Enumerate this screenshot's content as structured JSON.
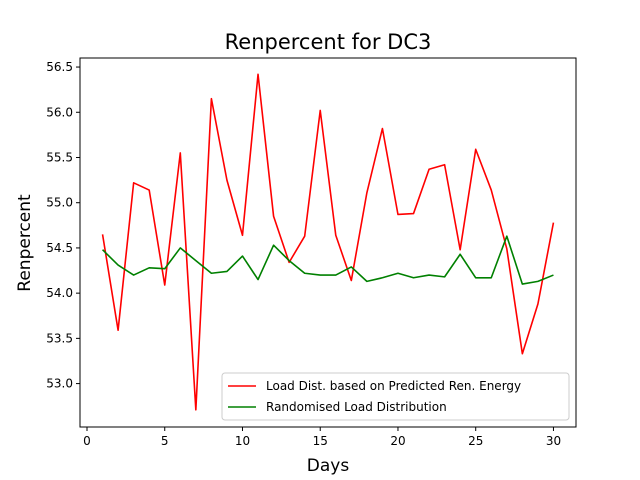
{
  "chart_data": {
    "type": "line",
    "title": "Renpercent for DC3",
    "xlabel": "Days",
    "ylabel": "Renpercent",
    "xlim": [
      -0.45,
      31.45
    ],
    "ylim": [
      52.52,
      56.6
    ],
    "xticks": [
      0,
      5,
      10,
      15,
      20,
      25,
      30
    ],
    "yticks": [
      53.0,
      53.5,
      54.0,
      54.5,
      55.0,
      55.5,
      56.0,
      56.5
    ],
    "grid": false,
    "legend_position": "lower-right",
    "x": [
      1,
      2,
      3,
      4,
      5,
      6,
      7,
      8,
      9,
      10,
      11,
      12,
      13,
      14,
      15,
      16,
      17,
      18,
      19,
      20,
      21,
      22,
      23,
      24,
      25,
      26,
      27,
      28,
      29,
      30
    ],
    "series": [
      {
        "name": "Load Dist. based on Predicted Ren. Energy",
        "color": "#ff0000",
        "values": [
          54.65,
          53.59,
          55.22,
          55.14,
          54.09,
          55.55,
          52.71,
          56.15,
          55.25,
          54.64,
          56.42,
          54.85,
          54.34,
          54.63,
          56.02,
          54.64,
          54.14,
          55.11,
          55.82,
          54.87,
          54.88,
          55.37,
          55.42,
          54.48,
          55.59,
          55.14,
          54.49,
          53.33,
          53.88,
          54.78
        ]
      },
      {
        "name": "Randomised Load Distribution",
        "color": "#008000",
        "values": [
          54.48,
          54.31,
          54.2,
          54.28,
          54.27,
          54.5,
          54.36,
          54.22,
          54.24,
          54.41,
          54.15,
          54.53,
          54.36,
          54.22,
          54.2,
          54.2,
          54.29,
          54.13,
          54.17,
          54.22,
          54.17,
          54.2,
          54.18,
          54.43,
          54.17,
          54.17,
          54.63,
          54.1,
          54.13,
          54.2
        ]
      }
    ]
  }
}
